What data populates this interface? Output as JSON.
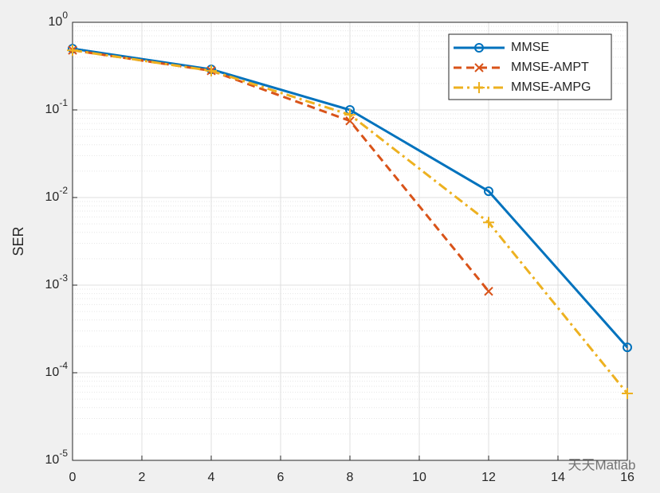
{
  "chart_data": {
    "type": "line",
    "y_label": "SER",
    "x": [
      0,
      4,
      8,
      12,
      16
    ],
    "series": [
      {
        "name": "MMSE",
        "color": "#0072BD",
        "linestyle": "solid",
        "marker": "circle",
        "values": [
          0.5,
          0.29,
          0.1,
          0.0118,
          0.000195
        ]
      },
      {
        "name": "MMSE-AMPT",
        "color": "#D95319",
        "linestyle": "dashed",
        "marker": "x",
        "values": [
          0.48,
          0.28,
          0.075,
          0.00085,
          null
        ]
      },
      {
        "name": "MMSE-AMPG",
        "color": "#EDB120",
        "linestyle": "dashdot",
        "marker": "plus",
        "values": [
          0.48,
          0.28,
          0.088,
          0.0052,
          5.8e-05
        ]
      }
    ],
    "xlim": [
      0,
      16
    ],
    "xticks": [
      0,
      2,
      4,
      6,
      8,
      10,
      12,
      14,
      16
    ],
    "ylim": [
      1e-05,
      1
    ],
    "log_y": true,
    "yticks": [
      {
        "value": 1,
        "label": "10^0"
      },
      {
        "value": 0.1,
        "label": "10^-1"
      },
      {
        "value": 0.01,
        "label": "10^-2"
      },
      {
        "value": 0.001,
        "label": "10^-3"
      },
      {
        "value": 0.0001,
        "label": "10^-4"
      },
      {
        "value": 1e-05,
        "label": "10^-5"
      }
    ],
    "grid": true,
    "minor_grid": true,
    "legend_position": "top-right",
    "watermark": "天天Matlab"
  }
}
